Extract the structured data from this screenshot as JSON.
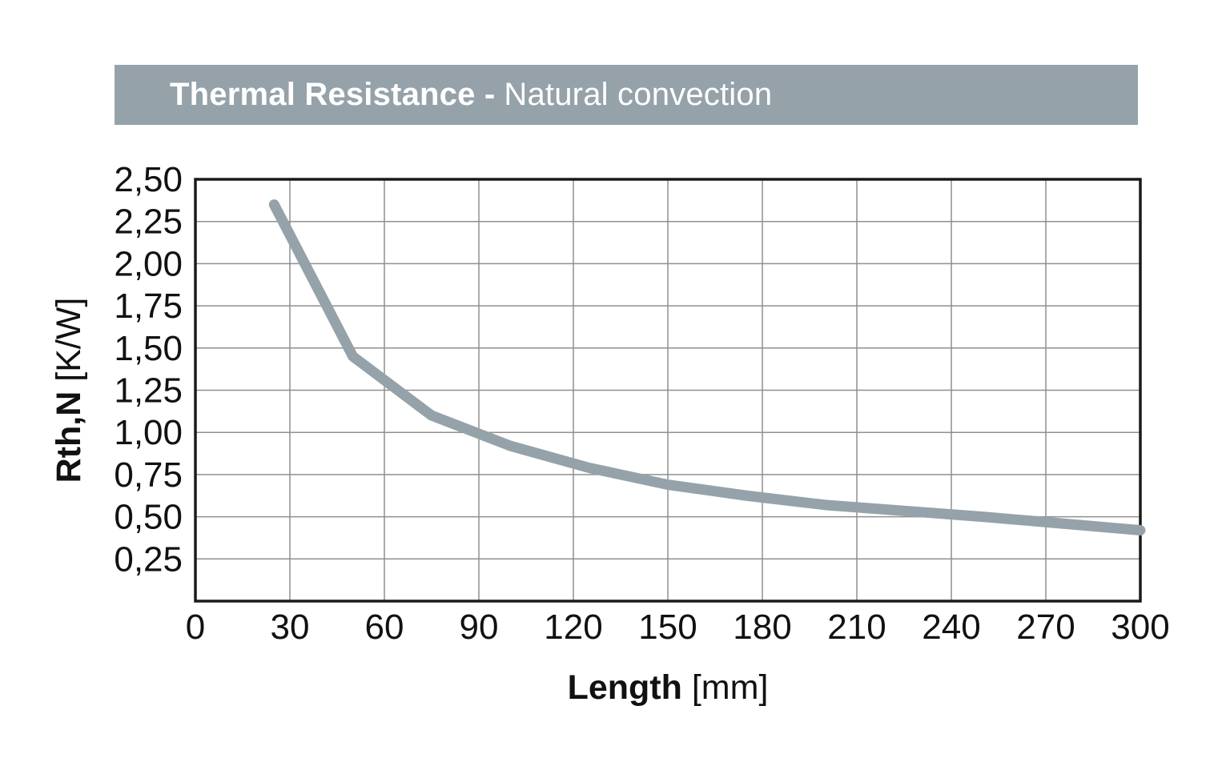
{
  "header": {
    "title_bold": "Thermal Resistance -",
    "title_regular": "Natural convection",
    "bg_color": "#96a2aa",
    "text_color": "#ffffff"
  },
  "chart_data": {
    "type": "line",
    "title": "Thermal Resistance - Natural convection",
    "xlabel": "Length",
    "xlabel_unit": "[mm]",
    "ylabel": "Rth,N",
    "ylabel_unit": "[K/W]",
    "xlim": [
      0,
      300
    ],
    "ylim": [
      0,
      2.5
    ],
    "grid": true,
    "legend": "none",
    "decimal_separator": ",",
    "line_color": "#96a2aa",
    "line_width": 13,
    "grid_color": "#8f8f8f",
    "border_color": "#1a1a1a",
    "x_ticks": [
      {
        "v": 0,
        "label": "0"
      },
      {
        "v": 30,
        "label": "30"
      },
      {
        "v": 60,
        "label": "60"
      },
      {
        "v": 90,
        "label": "90"
      },
      {
        "v": 120,
        "label": "120"
      },
      {
        "v": 150,
        "label": "150"
      },
      {
        "v": 180,
        "label": "180"
      },
      {
        "v": 210,
        "label": "210"
      },
      {
        "v": 240,
        "label": "240"
      },
      {
        "v": 270,
        "label": "270"
      },
      {
        "v": 300,
        "label": "300"
      }
    ],
    "y_ticks": [
      {
        "v": 2.5,
        "label": "2,50"
      },
      {
        "v": 2.25,
        "label": "2,25"
      },
      {
        "v": 2.0,
        "label": "2,00"
      },
      {
        "v": 1.75,
        "label": "1,75"
      },
      {
        "v": 1.5,
        "label": "1,50"
      },
      {
        "v": 1.25,
        "label": "1,25"
      },
      {
        "v": 1.0,
        "label": "1,00"
      },
      {
        "v": 0.75,
        "label": "0,75"
      },
      {
        "v": 0.5,
        "label": "0,50"
      },
      {
        "v": 0.25,
        "label": "0,25"
      }
    ],
    "series": [
      {
        "points": [
          [
            25,
            2.35
          ],
          [
            50,
            1.45
          ],
          [
            75,
            1.1
          ],
          [
            100,
            0.92
          ],
          [
            125,
            0.79
          ],
          [
            150,
            0.69
          ],
          [
            175,
            0.625
          ],
          [
            200,
            0.57
          ],
          [
            225,
            0.535
          ],
          [
            250,
            0.5
          ],
          [
            275,
            0.46
          ],
          [
            300,
            0.42
          ]
        ]
      }
    ]
  }
}
